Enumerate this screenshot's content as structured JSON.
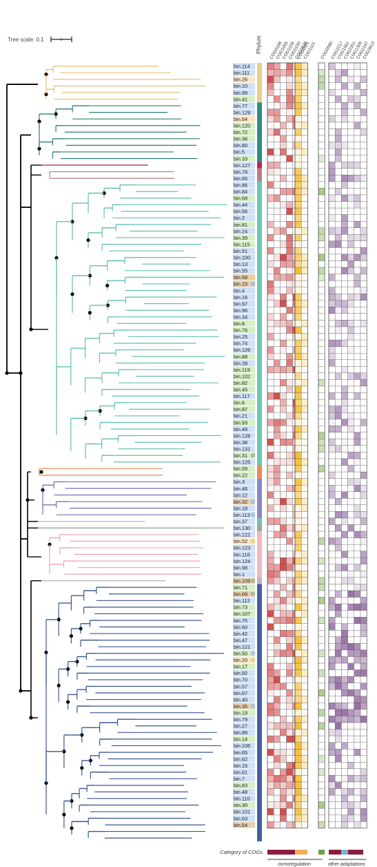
{
  "tree_scale_label": "Tree scale: 0.1",
  "phylum_header": "Phylum",
  "bins": [
    "bin.114",
    "bin.111",
    "bin.26",
    "bin.10",
    "bin.99",
    "bin.41",
    "bin.77",
    "bin.129",
    "bin.64",
    "bin.120",
    "bin.72",
    "bin.36",
    "bin.80",
    "bin.5",
    "bin.33",
    "bin.127",
    "bin.78",
    "bin.66",
    "bin.86",
    "bin.84",
    "bin.68",
    "bin.44",
    "bin.56",
    "bin.2",
    "bin.81",
    "bin.24",
    "bin.39",
    "bin.115",
    "bin.51",
    "bin.100",
    "bin.13",
    "bin.55",
    "bin.58",
    "bin.23",
    "bin.4",
    "bin.16",
    "bin.97",
    "bin.96",
    "bin.34",
    "bin.8",
    "bin.76",
    "bin.25",
    "bin.74",
    "bin.126",
    "bin.88",
    "bin.28",
    "bin.119",
    "bin.102",
    "bin.82",
    "bin.45",
    "bin.117",
    "bin.6",
    "bin.87",
    "bin.21",
    "bin.93",
    "bin.49",
    "bin.128",
    "bin.38",
    "bin.131",
    "bin.31",
    "bin.125",
    "bin.59",
    "bin.22",
    "bin.3",
    "bin.46",
    "bin.12",
    "bin.32",
    "bin.18",
    "bin.113",
    "bin.37",
    "bin.130",
    "bin.122",
    "bin.52",
    "bin.123",
    "bin.116",
    "bin.124",
    "bin.98",
    "bin.1",
    "bin.109",
    "bin.71",
    "bin.69",
    "bin.112",
    "bin.73",
    "bin.107",
    "bin.75",
    "bin.60",
    "bin.42",
    "bin.47",
    "bin.121",
    "bin.50",
    "bin.20",
    "bin.17",
    "bin.92",
    "bin.70",
    "bin.57",
    "bin.67",
    "bin.40",
    "bin.35",
    "bin.19",
    "bin.79",
    "bin.27",
    "bin.89",
    "bin.14",
    "bin.106",
    "bin.65",
    "bin.62",
    "bin.15",
    "bin.61",
    "bin.7",
    "bin.83",
    "bin.48",
    "bin.110",
    "bin.30",
    "bin.101",
    "bin.63",
    "bin.54"
  ],
  "bin_label_colors": {
    "blue": "#cfe0f7",
    "green": "#d6efc5",
    "tan": "#e4cfae",
    "peach": "#fbe6c6"
  },
  "phylum_colors": [
    "#e9cf8c",
    "#2f8c82",
    "#b5284e",
    "#b87e84",
    "#6cc5b5",
    "#e88a5a",
    "#8a87c4",
    "#9aa89a",
    "#efb7bf",
    "#b8b8b8",
    "#46609d"
  ],
  "cog_groups": [
    {
      "cogs": [
        "COG0168",
        "COG1055",
        "COG1158",
        "COG2230",
        "COG0628"
      ],
      "color": "#d23a3a"
    },
    {
      "cogs": [
        "COG0591",
        "COG1115"
      ],
      "color": "#f2b51e"
    },
    {
      "cogs": [
        "COG0580"
      ],
      "color": "#88b05a"
    },
    {
      "cogs": [
        "COG2217",
        "COG1561",
        "COG2351",
        "COG1309",
        "COG2197",
        "COG3613"
      ],
      "color": "#7a4a8c"
    }
  ],
  "category_label": "Category of COGs",
  "osmoregulation_label": "osmoregulation",
  "other_label": "other adaptations",
  "category_bar_colors": {
    "osmo": "#8c1c3c",
    "osmo2": "#f2b05a",
    "osmo3": "#6f9c4a",
    "other_a": "#8c1c3c",
    "other_b": "#6fb6d8",
    "other_c": "#8c1c3c"
  }
}
